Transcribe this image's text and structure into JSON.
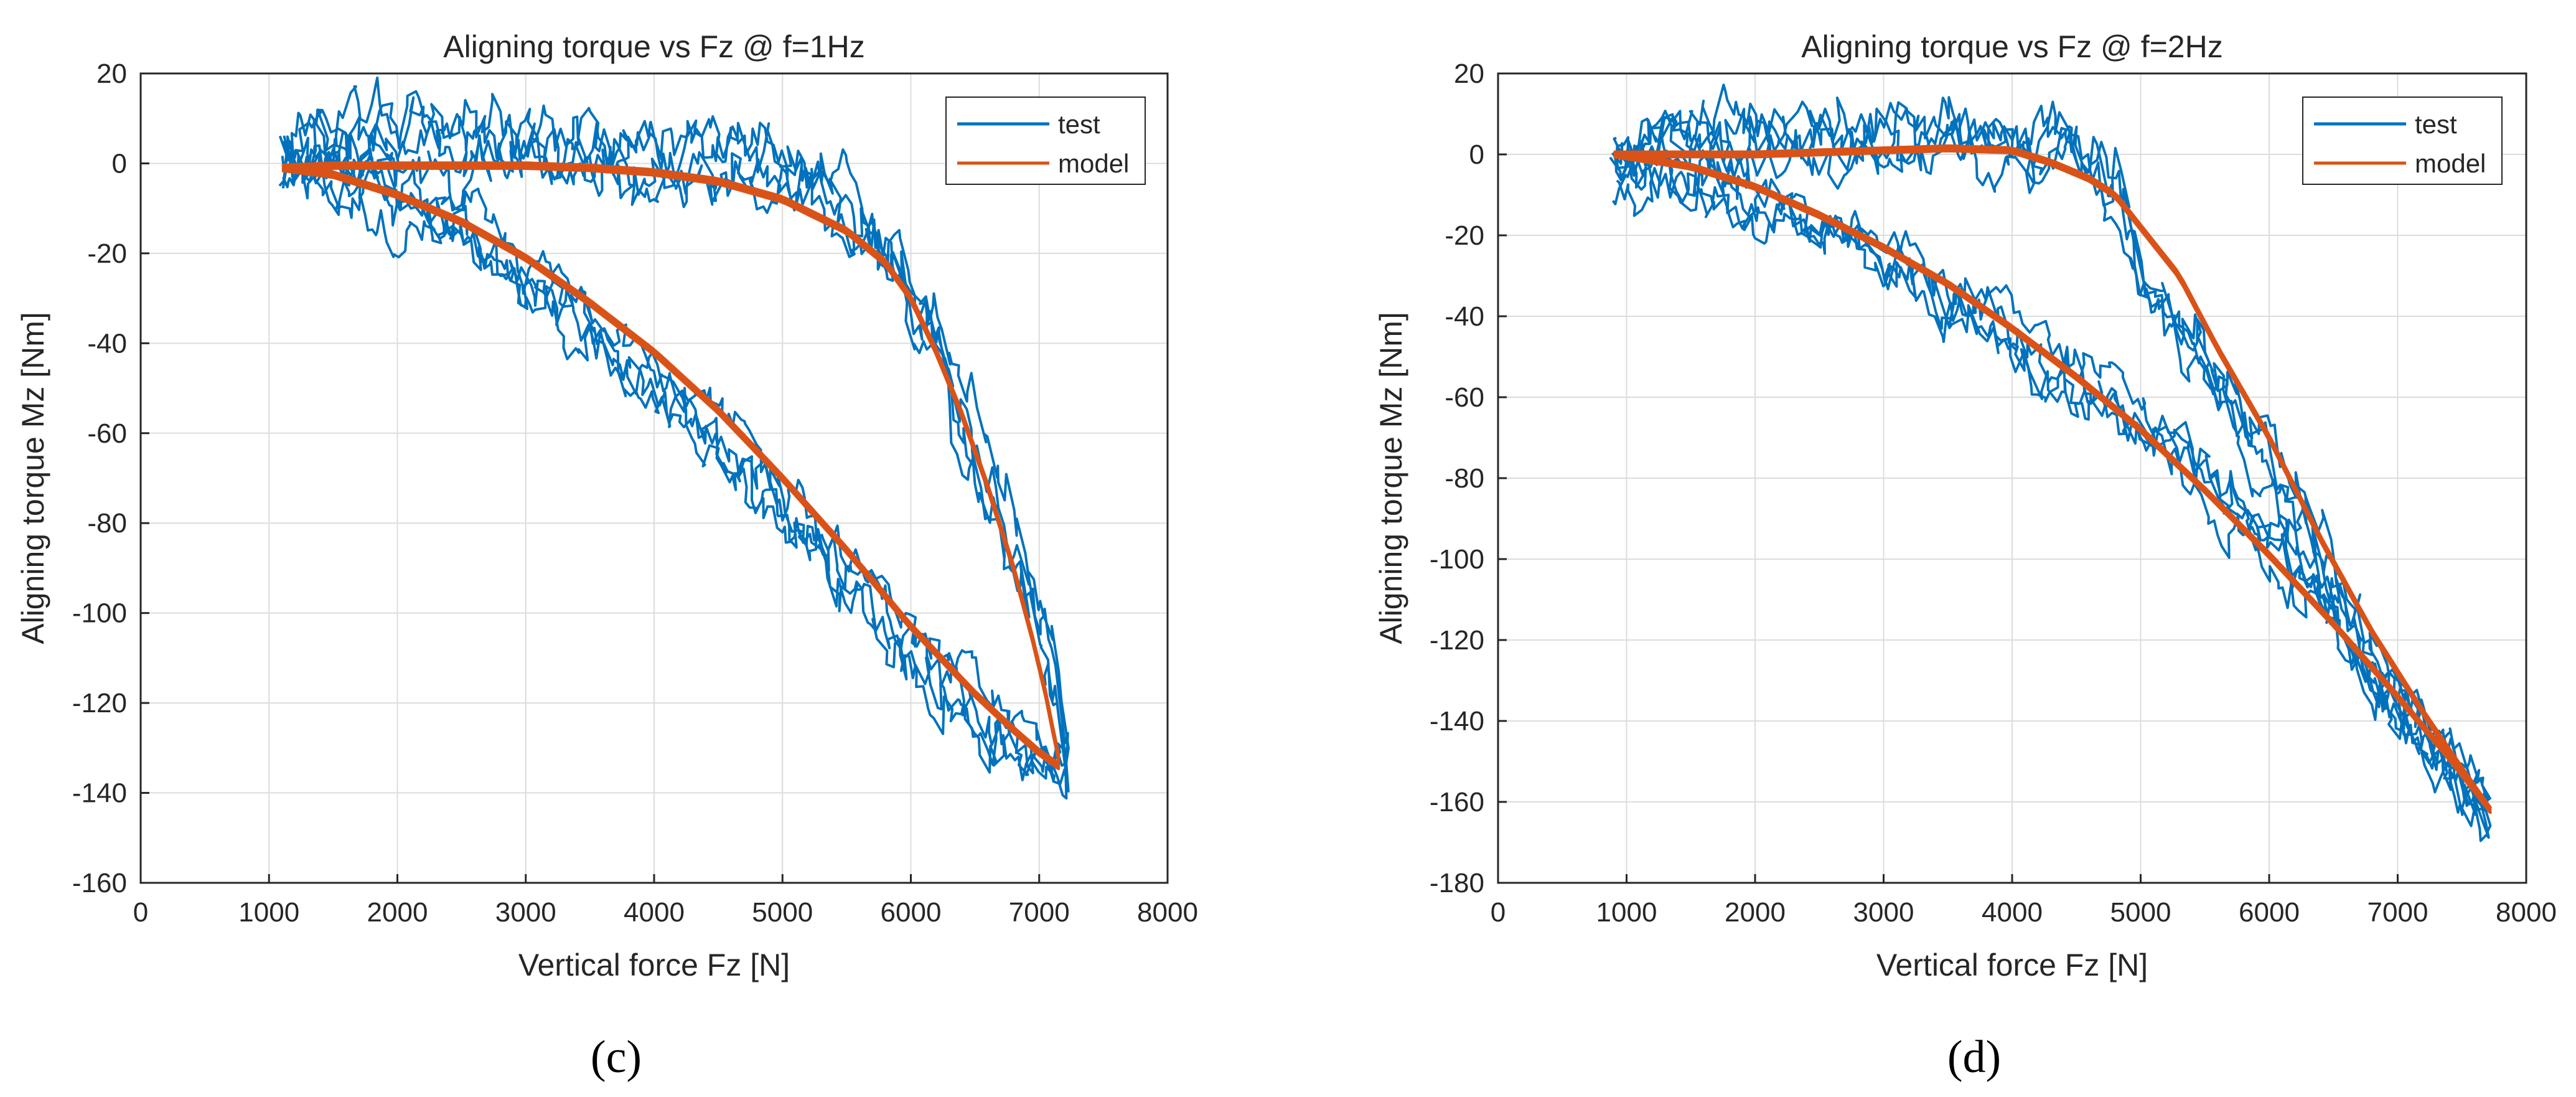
{
  "colors": {
    "test": "#0072BD",
    "model": "#D95319",
    "axis": "#262626",
    "grid": "#dcdcdc"
  },
  "chart_data": [
    {
      "type": "line",
      "panel_label": "(c)",
      "title": "Aligning torque vs Fz @ f=1Hz",
      "xlabel": "Vertical force Fz [N]",
      "ylabel": "Aligning torque Mz [Nm]",
      "xlim": [
        0,
        8000
      ],
      "ylim": [
        -160,
        20
      ],
      "xticks": [
        0,
        1000,
        2000,
        3000,
        4000,
        5000,
        6000,
        7000,
        8000
      ],
      "yticks": [
        20,
        0,
        -20,
        -40,
        -60,
        -80,
        -100,
        -120,
        -140,
        -160
      ],
      "grid": true,
      "legend": {
        "position": "top-right",
        "entries": [
          "test",
          "model"
        ]
      },
      "series": [
        {
          "name": "test",
          "color_key": "test",
          "description_points": "noisy measured hysteresis loops",
          "upper_branch": [
            [
              1100,
              3
            ],
            [
              1400,
              4
            ],
            [
              1800,
              6
            ],
            [
              2200,
              5
            ],
            [
              2600,
              5
            ],
            [
              3000,
              4
            ],
            [
              3400,
              3
            ],
            [
              3800,
              2
            ],
            [
              4200,
              0
            ],
            [
              4600,
              -1
            ],
            [
              5000,
              -2
            ],
            [
              5300,
              -6
            ],
            [
              5600,
              -14
            ],
            [
              5900,
              -24
            ],
            [
              6200,
              -40
            ],
            [
              6500,
              -62
            ],
            [
              6800,
              -84
            ],
            [
              7000,
              -102
            ],
            [
              7150,
              -120
            ],
            [
              7200,
              -130
            ]
          ],
          "lower_branch": [
            [
              1100,
              0
            ],
            [
              1500,
              -3
            ],
            [
              2000,
              -9
            ],
            [
              2500,
              -17
            ],
            [
              3000,
              -26
            ],
            [
              3500,
              -37
            ],
            [
              4000,
              -49
            ],
            [
              4500,
              -62
            ],
            [
              5000,
              -76
            ],
            [
              5500,
              -92
            ],
            [
              6000,
              -108
            ],
            [
              6500,
              -122
            ],
            [
              7000,
              -133
            ],
            [
              7200,
              -136
            ]
          ],
          "noise_amplitude": 5.5
        },
        {
          "name": "model",
          "color_key": "model",
          "upper_branch": [
            [
              1100,
              -1
            ],
            [
              1500,
              -0.5
            ],
            [
              2000,
              -0.5
            ],
            [
              2500,
              -0.5
            ],
            [
              3000,
              -0.5
            ],
            [
              3500,
              -1
            ],
            [
              4000,
              -2
            ],
            [
              4500,
              -4
            ],
            [
              5000,
              -8
            ],
            [
              5500,
              -15
            ],
            [
              5800,
              -22
            ],
            [
              6000,
              -30
            ],
            [
              6200,
              -42
            ],
            [
              6400,
              -56
            ],
            [
              6600,
              -72
            ],
            [
              6800,
              -90
            ],
            [
              6950,
              -106
            ],
            [
              7050,
              -118
            ],
            [
              7120,
              -128
            ],
            [
              7150,
              -132
            ]
          ],
          "lower_branch": [
            [
              1100,
              -1
            ],
            [
              1500,
              -2.5
            ],
            [
              2000,
              -7
            ],
            [
              2500,
              -13
            ],
            [
              3000,
              -21
            ],
            [
              3500,
              -31
            ],
            [
              4000,
              -42
            ],
            [
              4500,
              -55
            ],
            [
              5000,
              -70
            ],
            [
              5500,
              -86
            ],
            [
              6000,
              -103
            ],
            [
              6500,
              -118
            ],
            [
              6800,
              -126
            ],
            [
              7000,
              -131
            ],
            [
              7150,
              -134
            ]
          ]
        }
      ]
    },
    {
      "type": "line",
      "panel_label": "(d)",
      "title": "Aligning torque vs Fz @ f=2Hz",
      "xlabel": "Vertical force Fz [N]",
      "ylabel": "Aligning torque Mz [Nm]",
      "xlim": [
        0,
        8000
      ],
      "ylim": [
        -180,
        20
      ],
      "xticks": [
        0,
        1000,
        2000,
        3000,
        4000,
        5000,
        6000,
        7000,
        8000
      ],
      "yticks": [
        20,
        0,
        -20,
        -40,
        -60,
        -80,
        -100,
        -120,
        -140,
        -160,
        -180
      ],
      "grid": true,
      "legend": {
        "position": "top-right",
        "entries": [
          "test",
          "model"
        ]
      },
      "series": [
        {
          "name": "test",
          "color_key": "test",
          "description_points": "noisy measured hysteresis loops",
          "upper_branch": [
            [
              900,
              -2
            ],
            [
              1200,
              2
            ],
            [
              1600,
              3
            ],
            [
              2000,
              4
            ],
            [
              2500,
              5
            ],
            [
              3000,
              5
            ],
            [
              3500,
              5
            ],
            [
              4000,
              4
            ],
            [
              4500,
              2
            ],
            [
              4800,
              -8
            ],
            [
              5000,
              -30
            ],
            [
              5300,
              -40
            ],
            [
              5600,
              -55
            ],
            [
              6000,
              -75
            ],
            [
              6400,
              -100
            ],
            [
              6800,
              -125
            ],
            [
              7200,
              -145
            ],
            [
              7500,
              -158
            ],
            [
              7700,
              -165
            ]
          ],
          "lower_branch": [
            [
              900,
              -2
            ],
            [
              1300,
              -4
            ],
            [
              1800,
              -9
            ],
            [
              2300,
              -15
            ],
            [
              2800,
              -22
            ],
            [
              3200,
              -30
            ],
            [
              3600,
              -38
            ],
            [
              4000,
              -46
            ],
            [
              4400,
              -54
            ],
            [
              4800,
              -62
            ],
            [
              5200,
              -72
            ],
            [
              5600,
              -84
            ],
            [
              6000,
              -96
            ],
            [
              6400,
              -110
            ],
            [
              6800,
              -126
            ],
            [
              7200,
              -142
            ],
            [
              7500,
              -154
            ],
            [
              7700,
              -163
            ]
          ],
          "noise_amplitude": 6
        },
        {
          "name": "model",
          "color_key": "model",
          "upper_branch": [
            [
              900,
              0
            ],
            [
              1500,
              0
            ],
            [
              2000,
              0
            ],
            [
              2500,
              0.5
            ],
            [
              3000,
              1
            ],
            [
              3500,
              1.5
            ],
            [
              4000,
              1
            ],
            [
              4300,
              -2
            ],
            [
              4600,
              -6
            ],
            [
              4800,
              -10
            ],
            [
              5000,
              -18
            ],
            [
              5300,
              -30
            ],
            [
              5600,
              -48
            ],
            [
              6000,
              -70
            ],
            [
              6400,
              -95
            ],
            [
              6800,
              -118
            ],
            [
              7200,
              -138
            ],
            [
              7500,
              -152
            ],
            [
              7720,
              -162
            ]
          ],
          "lower_branch": [
            [
              900,
              0
            ],
            [
              1500,
              -3
            ],
            [
              2000,
              -8
            ],
            [
              2500,
              -15
            ],
            [
              3000,
              -23
            ],
            [
              3500,
              -32
            ],
            [
              4000,
              -43
            ],
            [
              4500,
              -55
            ],
            [
              5000,
              -68
            ],
            [
              5500,
              -83
            ],
            [
              6000,
              -99
            ],
            [
              6500,
              -116
            ],
            [
              7000,
              -134
            ],
            [
              7400,
              -149
            ],
            [
              7720,
              -162
            ]
          ]
        }
      ]
    }
  ]
}
